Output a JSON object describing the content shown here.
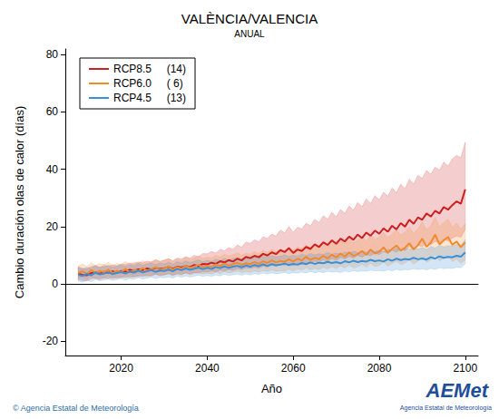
{
  "chart_data": {
    "type": "line",
    "title": "VALÈNCIA/VALENCIA",
    "subtitle": "ANUAL",
    "x_label": "Año",
    "y_label": "Cambio duración olas de calor (días)",
    "annotations": [
      {
        "text": "© Agencia Estatal de Meteorología"
      },
      {
        "text": "AEMet"
      },
      {
        "text": "Agencia Estatal de Meteorología"
      }
    ],
    "xlim": [
      2007,
      2103
    ],
    "xticks": [
      2020,
      2040,
      2060,
      2080,
      2100
    ],
    "ylim": [
      -25,
      82
    ],
    "yticks": [
      -20,
      0,
      20,
      40,
      60,
      80
    ],
    "grid": false,
    "legend": "upper left",
    "x": [
      2010,
      2011,
      2012,
      2013,
      2014,
      2015,
      2016,
      2017,
      2018,
      2019,
      2020,
      2021,
      2022,
      2023,
      2024,
      2025,
      2026,
      2027,
      2028,
      2029,
      2030,
      2031,
      2032,
      2033,
      2034,
      2035,
      2036,
      2037,
      2038,
      2039,
      2040,
      2041,
      2042,
      2043,
      2044,
      2045,
      2046,
      2047,
      2048,
      2049,
      2050,
      2051,
      2052,
      2053,
      2054,
      2055,
      2056,
      2057,
      2058,
      2059,
      2060,
      2061,
      2062,
      2063,
      2064,
      2065,
      2066,
      2067,
      2068,
      2069,
      2070,
      2071,
      2072,
      2073,
      2074,
      2075,
      2076,
      2077,
      2078,
      2079,
      2080,
      2081,
      2082,
      2083,
      2084,
      2085,
      2086,
      2087,
      2088,
      2089,
      2090,
      2091,
      2092,
      2093,
      2094,
      2095,
      2096,
      2097,
      2098,
      2099,
      2100
    ],
    "series": [
      {
        "name": "RCP8.5",
        "models": "(14)",
        "color": "#cc1f1f",
        "values": [
          3.6,
          3.2,
          3.0,
          3.8,
          4.1,
          3.5,
          4.2,
          3.9,
          4.4,
          4.0,
          4.5,
          4.3,
          4.9,
          4.6,
          5.1,
          4.8,
          5.4,
          5.0,
          5.6,
          5.2,
          5.5,
          5.9,
          5.3,
          6.0,
          5.7,
          6.3,
          5.9,
          6.6,
          6.2,
          7.0,
          6.8,
          7.4,
          7.0,
          7.9,
          7.5,
          8.3,
          7.8,
          8.8,
          8.2,
          9.4,
          9.0,
          9.8,
          9.3,
          10.5,
          9.9,
          11.0,
          10.4,
          11.8,
          11.1,
          12.5,
          10.8,
          12.0,
          11.5,
          12.9,
          12.2,
          13.8,
          12.9,
          14.5,
          13.6,
          15.2,
          14.0,
          15.8,
          14.8,
          16.5,
          15.4,
          17.2,
          16.0,
          17.9,
          16.8,
          18.6,
          17.5,
          19.4,
          18.2,
          20.3,
          19.0,
          21.2,
          20.0,
          22.4,
          21.0,
          23.2,
          22.4,
          24.6,
          23.5,
          25.5,
          24.6,
          26.8,
          25.9,
          27.5,
          28.8,
          28.0,
          33.0
        ],
        "upper": [
          6.0,
          5.4,
          5.2,
          6.0,
          6.4,
          5.8,
          6.5,
          6.2,
          6.7,
          6.3,
          6.9,
          6.7,
          7.4,
          7.0,
          7.7,
          7.3,
          8.0,
          7.6,
          8.3,
          7.9,
          8.3,
          8.8,
          8.1,
          9.0,
          8.7,
          9.5,
          9.0,
          10.0,
          9.5,
          10.6,
          10.5,
          11.3,
          10.8,
          12.0,
          11.6,
          12.7,
          12.1,
          13.6,
          12.8,
          14.6,
          14.2,
          15.4,
          14.7,
          16.5,
          15.8,
          17.4,
          16.7,
          18.8,
          17.8,
          20.0,
          18.0,
          19.8,
          19.2,
          21.2,
          20.3,
          22.6,
          21.4,
          23.8,
          22.6,
          25.0,
          23.4,
          26.0,
          24.6,
          27.2,
          25.8,
          28.4,
          26.9,
          29.7,
          28.1,
          30.8,
          29.4,
          32.0,
          30.6,
          33.5,
          31.8,
          34.8,
          33.2,
          36.6,
          34.8,
          37.9,
          36.8,
          39.6,
          38.3,
          40.8,
          39.7,
          42.5,
          41.2,
          43.6,
          44.9,
          44.0,
          49.5
        ],
        "lower": [
          1.5,
          1.2,
          1.0,
          1.8,
          2.0,
          1.5,
          2.1,
          1.8,
          2.3,
          2.0,
          2.4,
          2.2,
          2.7,
          2.4,
          2.9,
          2.6,
          3.1,
          2.8,
          3.3,
          3.0,
          3.2,
          3.5,
          3.0,
          3.6,
          3.3,
          3.8,
          3.5,
          4.0,
          3.7,
          4.3,
          4.1,
          4.5,
          4.2,
          4.8,
          4.5,
          5.0,
          4.7,
          5.3,
          5.0,
          5.6,
          5.4,
          5.8,
          5.5,
          6.2,
          5.8,
          6.5,
          6.1,
          6.9,
          6.5,
          7.2,
          6.4,
          7.0,
          6.7,
          7.5,
          7.1,
          8.0,
          7.5,
          8.4,
          7.9,
          8.8,
          8.2,
          9.2,
          8.6,
          9.6,
          9.0,
          10.0,
          9.3,
          10.4,
          9.8,
          10.8,
          10.2,
          11.3,
          10.6,
          11.8,
          11.0,
          12.3,
          11.6,
          13.0,
          12.2,
          13.5,
          13.0,
          14.3,
          13.6,
          14.8,
          14.3,
          15.6,
          15.0,
          16.0,
          16.7,
          16.3,
          19.0
        ]
      },
      {
        "name": "RCP6.0",
        "models": "( 6)",
        "color": "#f08a2c",
        "values": [
          3.8,
          4.4,
          3.5,
          4.8,
          3.9,
          4.5,
          4.1,
          5.0,
          3.7,
          4.6,
          4.2,
          5.2,
          4.0,
          4.9,
          4.5,
          5.5,
          4.6,
          5.1,
          5.8,
          4.9,
          5.4,
          6.1,
          5.0,
          5.9,
          5.3,
          6.4,
          5.6,
          6.0,
          6.7,
          5.8,
          6.3,
          5.9,
          6.8,
          6.2,
          7.1,
          6.4,
          6.9,
          7.4,
          6.6,
          7.2,
          6.9,
          7.6,
          7.0,
          7.9,
          7.3,
          8.2,
          7.5,
          8.0,
          7.7,
          8.6,
          7.8,
          8.8,
          8.2,
          9.4,
          8.4,
          9.1,
          8.6,
          9.8,
          8.9,
          10.2,
          9.2,
          10.6,
          9.5,
          11.0,
          9.8,
          10.4,
          11.5,
          10.1,
          12.0,
          10.6,
          11.2,
          12.8,
          10.9,
          12.2,
          13.4,
          11.6,
          12.6,
          14.2,
          12.0,
          13.5,
          15.8,
          13.0,
          14.4,
          17.2,
          13.8,
          15.2,
          16.4,
          13.6,
          14.8,
          12.8,
          14.5
        ],
        "upper": [
          6.3,
          7.0,
          6.0,
          7.4,
          6.5,
          7.1,
          6.7,
          7.6,
          6.3,
          7.2,
          6.8,
          7.9,
          6.6,
          7.6,
          7.2,
          8.2,
          7.3,
          7.8,
          8.6,
          7.6,
          8.2,
          8.9,
          7.8,
          8.8,
          8.1,
          9.3,
          8.5,
          9.0,
          9.7,
          8.8,
          9.4,
          9.0,
          10.0,
          9.4,
          10.4,
          9.7,
          10.2,
          10.8,
          10.0,
          10.7,
          10.4,
          11.2,
          10.6,
          11.6,
          11.0,
          12.0,
          11.3,
          11.9,
          11.6,
          12.6,
          11.8,
          12.9,
          12.3,
          13.6,
          12.6,
          13.4,
          12.9,
          14.2,
          13.3,
          14.7,
          13.7,
          15.2,
          14.1,
          15.7,
          14.5,
          15.2,
          16.4,
          15.0,
          17.0,
          15.6,
          16.3,
          18.0,
          16.1,
          17.5,
          18.8,
          17.0,
          18.1,
          19.8,
          17.6,
          19.2,
          21.6,
          18.9,
          20.4,
          23.3,
          19.9,
          21.4,
          22.7,
          19.9,
          21.2,
          19.2,
          21.0
        ],
        "lower": [
          1.8,
          2.3,
          1.5,
          2.6,
          1.8,
          2.3,
          2.0,
          2.8,
          1.7,
          2.5,
          2.1,
          3.0,
          2.0,
          2.7,
          2.4,
          3.2,
          2.5,
          2.9,
          3.5,
          2.8,
          3.1,
          3.7,
          2.8,
          3.5,
          3.0,
          3.9,
          3.2,
          3.6,
          4.1,
          3.4,
          3.8,
          3.4,
          4.1,
          3.6,
          4.3,
          3.8,
          4.1,
          4.5,
          3.9,
          4.3,
          4.0,
          4.5,
          4.1,
          4.7,
          4.3,
          4.9,
          4.4,
          4.7,
          4.5,
          5.1,
          4.5,
          5.2,
          4.8,
          5.6,
          4.9,
          5.4,
          5.0,
          5.8,
          5.2,
          6.0,
          5.3,
          6.3,
          5.5,
          6.5,
          5.6,
          6.0,
          6.8,
          5.8,
          7.1,
          6.1,
          6.5,
          7.6,
          6.2,
          7.1,
          7.9,
          6.7,
          7.3,
          8.4,
          6.9,
          7.9,
          9.4,
          7.5,
          8.4,
          10.3,
          8.0,
          8.9,
          9.7,
          7.8,
          8.6,
          7.2,
          8.4
        ]
      },
      {
        "name": "RCP4.5",
        "models": "(13)",
        "color": "#3a8fd6",
        "values": [
          3.2,
          2.8,
          3.5,
          3.0,
          3.9,
          3.3,
          3.6,
          4.0,
          3.4,
          3.8,
          4.1,
          3.6,
          4.3,
          3.9,
          4.6,
          4.0,
          4.4,
          4.8,
          4.2,
          4.7,
          4.5,
          5.0,
          4.4,
          5.2,
          4.8,
          5.4,
          4.9,
          5.3,
          5.7,
          5.1,
          5.6,
          5.2,
          5.9,
          5.5,
          6.1,
          5.6,
          6.0,
          6.3,
          5.8,
          6.4,
          6.0,
          6.6,
          6.2,
          6.8,
          6.3,
          6.9,
          6.5,
          6.7,
          7.1,
          6.6,
          7.0,
          6.7,
          7.3,
          6.9,
          7.5,
          7.0,
          7.4,
          7.2,
          7.7,
          7.3,
          7.6,
          7.2,
          7.9,
          7.5,
          8.1,
          7.6,
          8.0,
          7.8,
          8.4,
          7.9,
          8.2,
          7.8,
          8.6,
          8.1,
          8.8,
          8.3,
          8.7,
          8.5,
          9.1,
          8.6,
          8.9,
          8.5,
          9.3,
          8.8,
          9.6,
          9.1,
          9.4,
          9.3,
          9.8,
          9.5,
          11.0
        ],
        "upper": [
          5.6,
          5.2,
          5.9,
          5.4,
          6.3,
          5.7,
          6.0,
          6.4,
          5.8,
          6.2,
          6.6,
          6.0,
          6.8,
          6.3,
          7.1,
          6.5,
          6.9,
          7.3,
          6.7,
          7.2,
          7.0,
          7.6,
          6.9,
          7.8,
          7.3,
          8.0,
          7.5,
          7.9,
          8.4,
          7.7,
          8.3,
          7.8,
          8.6,
          8.2,
          8.9,
          8.3,
          8.8,
          9.1,
          8.6,
          9.2,
          8.8,
          9.5,
          9.0,
          9.7,
          9.2,
          9.9,
          9.4,
          9.7,
          10.1,
          9.6,
          10.0,
          9.7,
          10.4,
          9.9,
          10.6,
          10.1,
          10.5,
          10.3,
          10.9,
          10.4,
          10.8,
          10.4,
          11.2,
          10.7,
          11.4,
          10.9,
          11.3,
          11.1,
          11.8,
          11.3,
          11.7,
          11.2,
          12.1,
          11.6,
          12.4,
          11.8,
          12.3,
          12.1,
          12.8,
          12.2,
          12.6,
          12.1,
          13.1,
          12.5,
          13.5,
          12.9,
          13.3,
          13.2,
          13.8,
          13.5,
          15.5
        ],
        "lower": [
          1.0,
          0.6,
          1.3,
          0.8,
          1.6,
          1.1,
          1.3,
          1.7,
          1.2,
          1.5,
          1.8,
          1.3,
          1.9,
          1.6,
          2.2,
          1.7,
          2.0,
          2.4,
          1.9,
          2.3,
          2.1,
          2.5,
          2.0,
          2.7,
          2.3,
          2.8,
          2.4,
          2.7,
          3.0,
          2.6,
          2.9,
          2.6,
          3.1,
          2.8,
          3.3,
          2.9,
          3.2,
          3.4,
          3.0,
          3.5,
          3.1,
          3.6,
          3.3,
          3.8,
          3.4,
          3.9,
          3.5,
          3.7,
          4.0,
          3.6,
          3.9,
          3.7,
          4.1,
          3.8,
          4.3,
          3.9,
          4.2,
          4.0,
          4.4,
          4.1,
          4.3,
          4.0,
          4.5,
          4.2,
          4.6,
          4.3,
          4.5,
          4.4,
          4.8,
          4.5,
          4.7,
          4.4,
          4.9,
          4.6,
          5.1,
          4.7,
          5.0,
          4.9,
          5.3,
          5.0,
          5.2,
          4.9,
          5.4,
          5.1,
          5.6,
          5.3,
          5.5,
          5.4,
          5.8,
          5.6,
          7.0
        ]
      }
    ]
  }
}
